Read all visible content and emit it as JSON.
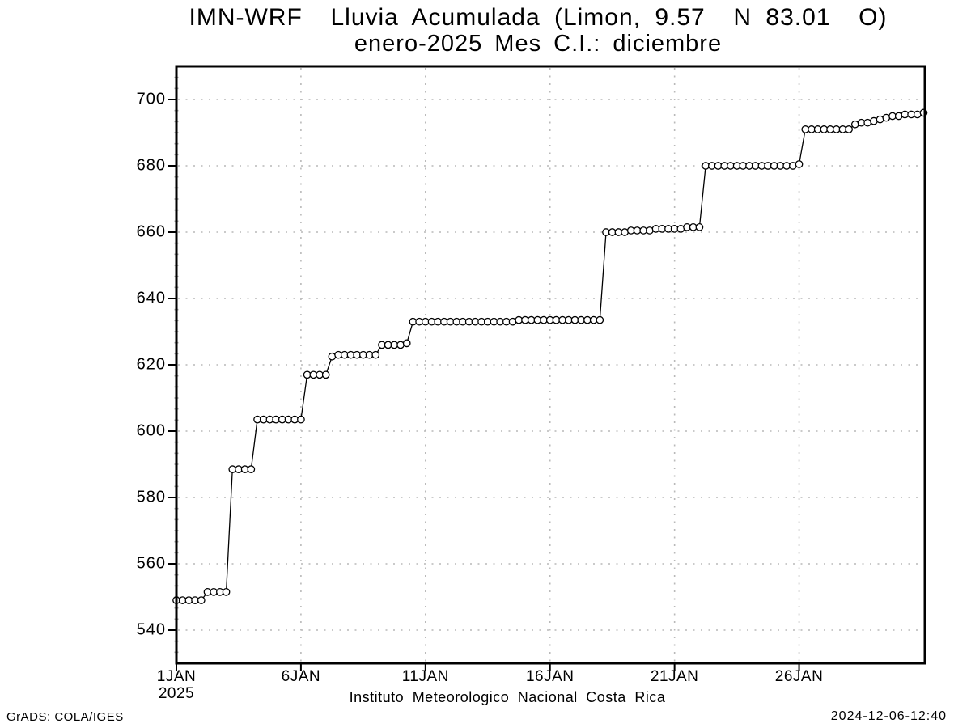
{
  "title": {
    "line1": "IMN-WRF  Lluvia Acumulada (Limon, 9.57  N 83.01  O)",
    "line2": "enero-2025 Mes C.I.: diciembre"
  },
  "footer": {
    "left": "GrADS: COLA/IGES",
    "right": "2024-12-06-12:40"
  },
  "colors": {
    "line": "#000000",
    "marker_fill": "#ffffff",
    "marker_stroke": "#000000",
    "grid": "#b9b9b9",
    "minor_tick": "#a6a6a6",
    "frame": "#000000",
    "background": "#ffffff"
  },
  "chart_data": {
    "type": "line",
    "title": "IMN-WRF  Lluvia Acumulada (Limon, 9.57  N 83.01  O)",
    "subtitle": "enero-2025 Mes C.I.: diciembre",
    "xlabel": "Instituto Meteorologico Nacional Costa Rica",
    "ylabel": "",
    "x_unit": "day of January 2025",
    "y_unit": "accumulated rainfall",
    "xlim": [
      1,
      31.05
    ],
    "ylim": [
      530,
      710
    ],
    "grid": "dashed",
    "legend": "none",
    "marker": "open-circle",
    "yticks": [
      540,
      560,
      580,
      600,
      620,
      640,
      660,
      680,
      700
    ],
    "xticks": [
      {
        "x": 1,
        "label": "1JAN",
        "sublabel": "2025"
      },
      {
        "x": 6,
        "label": "6JAN"
      },
      {
        "x": 11,
        "label": "11JAN"
      },
      {
        "x": 16,
        "label": "16JAN"
      },
      {
        "x": 21,
        "label": "21JAN"
      },
      {
        "x": 26,
        "label": "26JAN"
      }
    ],
    "series": [
      {
        "name": "lluvia_acumulada",
        "points": [
          [
            1,
            549
          ],
          [
            1.25,
            549
          ],
          [
            1.5,
            549
          ],
          [
            1.75,
            549
          ],
          [
            2,
            549
          ],
          [
            2.25,
            551.5
          ],
          [
            2.5,
            551.5
          ],
          [
            2.75,
            551.5
          ],
          [
            3,
            551.5
          ],
          [
            3.25,
            588.5
          ],
          [
            3.5,
            588.5
          ],
          [
            3.75,
            588.5
          ],
          [
            4,
            588.5
          ],
          [
            4.25,
            603.5
          ],
          [
            4.5,
            603.5
          ],
          [
            4.75,
            603.5
          ],
          [
            5,
            603.5
          ],
          [
            5.25,
            603.5
          ],
          [
            5.5,
            603.5
          ],
          [
            5.75,
            603.5
          ],
          [
            6,
            603.5
          ],
          [
            6.25,
            617
          ],
          [
            6.5,
            617
          ],
          [
            6.75,
            617
          ],
          [
            7,
            617
          ],
          [
            7.25,
            622.5
          ],
          [
            7.5,
            623
          ],
          [
            7.75,
            623
          ],
          [
            8,
            623
          ],
          [
            8.25,
            623
          ],
          [
            8.5,
            623
          ],
          [
            8.75,
            623
          ],
          [
            9,
            623
          ],
          [
            9.25,
            626
          ],
          [
            9.5,
            626
          ],
          [
            9.75,
            626
          ],
          [
            10,
            626
          ],
          [
            10.25,
            626.5
          ],
          [
            10.5,
            633
          ],
          [
            10.75,
            633
          ],
          [
            11,
            633
          ],
          [
            11.25,
            633
          ],
          [
            11.5,
            633
          ],
          [
            11.75,
            633
          ],
          [
            12,
            633
          ],
          [
            12.25,
            633
          ],
          [
            12.5,
            633
          ],
          [
            12.75,
            633
          ],
          [
            13,
            633
          ],
          [
            13.25,
            633
          ],
          [
            13.5,
            633
          ],
          [
            13.75,
            633
          ],
          [
            14,
            633
          ],
          [
            14.25,
            633
          ],
          [
            14.5,
            633
          ],
          [
            14.75,
            633.5
          ],
          [
            15,
            633.5
          ],
          [
            15.25,
            633.5
          ],
          [
            15.5,
            633.5
          ],
          [
            15.75,
            633.5
          ],
          [
            16,
            633.5
          ],
          [
            16.25,
            633.5
          ],
          [
            16.5,
            633.5
          ],
          [
            16.75,
            633.5
          ],
          [
            17,
            633.5
          ],
          [
            17.25,
            633.5
          ],
          [
            17.5,
            633.5
          ],
          [
            17.75,
            633.5
          ],
          [
            18,
            633.5
          ],
          [
            18.25,
            660
          ],
          [
            18.5,
            660
          ],
          [
            18.75,
            660
          ],
          [
            19,
            660
          ],
          [
            19.25,
            660.5
          ],
          [
            19.5,
            660.5
          ],
          [
            19.75,
            660.5
          ],
          [
            20,
            660.5
          ],
          [
            20.25,
            661
          ],
          [
            20.5,
            661
          ],
          [
            20.75,
            661
          ],
          [
            21,
            661
          ],
          [
            21.25,
            661
          ],
          [
            21.5,
            661.5
          ],
          [
            21.75,
            661.5
          ],
          [
            22,
            661.5
          ],
          [
            22.25,
            680
          ],
          [
            22.5,
            680
          ],
          [
            22.75,
            680
          ],
          [
            23,
            680
          ],
          [
            23.25,
            680
          ],
          [
            23.5,
            680
          ],
          [
            23.75,
            680
          ],
          [
            24,
            680
          ],
          [
            24.25,
            680
          ],
          [
            24.5,
            680
          ],
          [
            24.75,
            680
          ],
          [
            25,
            680
          ],
          [
            25.25,
            680
          ],
          [
            25.5,
            680
          ],
          [
            25.75,
            680
          ],
          [
            26,
            680.5
          ],
          [
            26.25,
            691
          ],
          [
            26.5,
            691
          ],
          [
            26.75,
            691
          ],
          [
            27,
            691
          ],
          [
            27.25,
            691
          ],
          [
            27.5,
            691
          ],
          [
            27.75,
            691
          ],
          [
            28,
            691
          ],
          [
            28.25,
            692.5
          ],
          [
            28.5,
            693
          ],
          [
            28.75,
            693
          ],
          [
            29,
            693.5
          ],
          [
            29.25,
            694
          ],
          [
            29.5,
            694.5
          ],
          [
            29.75,
            695
          ],
          [
            30,
            695
          ],
          [
            30.25,
            695.5
          ],
          [
            30.5,
            695.5
          ],
          [
            30.75,
            695.5
          ],
          [
            31,
            696
          ]
        ]
      }
    ]
  }
}
